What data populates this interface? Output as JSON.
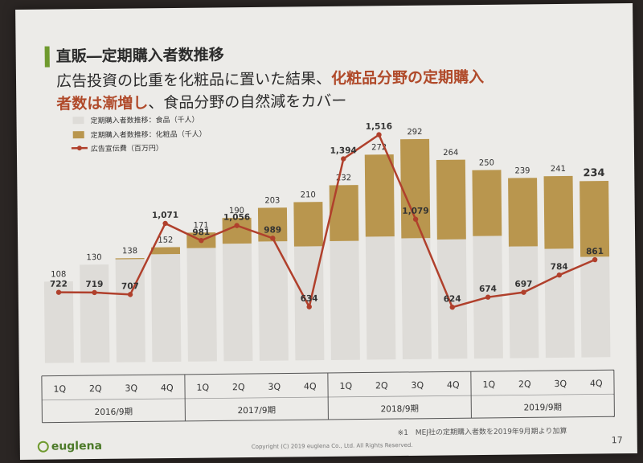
{
  "header": {
    "title": "直販―定期購入者数推移",
    "subtitle_pre": "広告投資の比重を化粧品に置いた結果、",
    "subtitle_hl1": "化粧品分野の定期購入",
    "subtitle_hl2": "者数は漸増し",
    "subtitle_post": "、食品分野の自然減をカバー"
  },
  "colors": {
    "food": "#dedcd8",
    "cosmetics": "#b9964e",
    "ad": "#b0402c"
  },
  "chart_data": {
    "type": "bar",
    "stacked": true,
    "categories": [
      "1Q",
      "2Q",
      "3Q",
      "4Q",
      "1Q",
      "2Q",
      "3Q",
      "4Q",
      "1Q",
      "2Q",
      "3Q",
      "4Q",
      "1Q",
      "2Q",
      "3Q",
      "4Q"
    ],
    "groups": [
      "2016/9期",
      "2017/9期",
      "2018/9期",
      "2019/9期"
    ],
    "legend": [
      "定期購入者数推移：食品（千人）",
      "定期購入者数推移：化粧品（千人）",
      "広告宣伝費（百万円）"
    ],
    "total_labels": [
      "108",
      "130",
      "138",
      "152",
      "171",
      "190",
      "203",
      "210",
      "232",
      "272",
      "292",
      "264",
      "250",
      "239",
      "241",
      "234"
    ],
    "food_share": [
      1.0,
      1.0,
      0.99,
      0.94,
      0.88,
      0.82,
      0.78,
      0.72,
      0.68,
      0.6,
      0.55,
      0.6,
      0.65,
      0.62,
      0.6,
      0.57
    ],
    "series": [
      {
        "name": "広告宣伝費（百万円）",
        "type": "line",
        "values": [
          722,
          719,
          707,
          1071,
          981,
          1056,
          989,
          634,
          1394,
          1516,
          1079,
          624,
          674,
          697,
          784,
          861
        ],
        "labels": [
          "722",
          "719",
          "707",
          "1,071",
          "981",
          "1,056",
          "989",
          "634",
          "1,394",
          "1,516",
          "1,079",
          "624",
          "674",
          "697",
          "784",
          "861"
        ]
      }
    ]
  },
  "footer": {
    "note": "※1　MEJ社の定期購入者数を2019年9月期より加算",
    "copyright": "Copyright (C) 2019 euglena Co., Ltd. All Rights Reserved.",
    "page": "17",
    "logo": "euglena"
  }
}
